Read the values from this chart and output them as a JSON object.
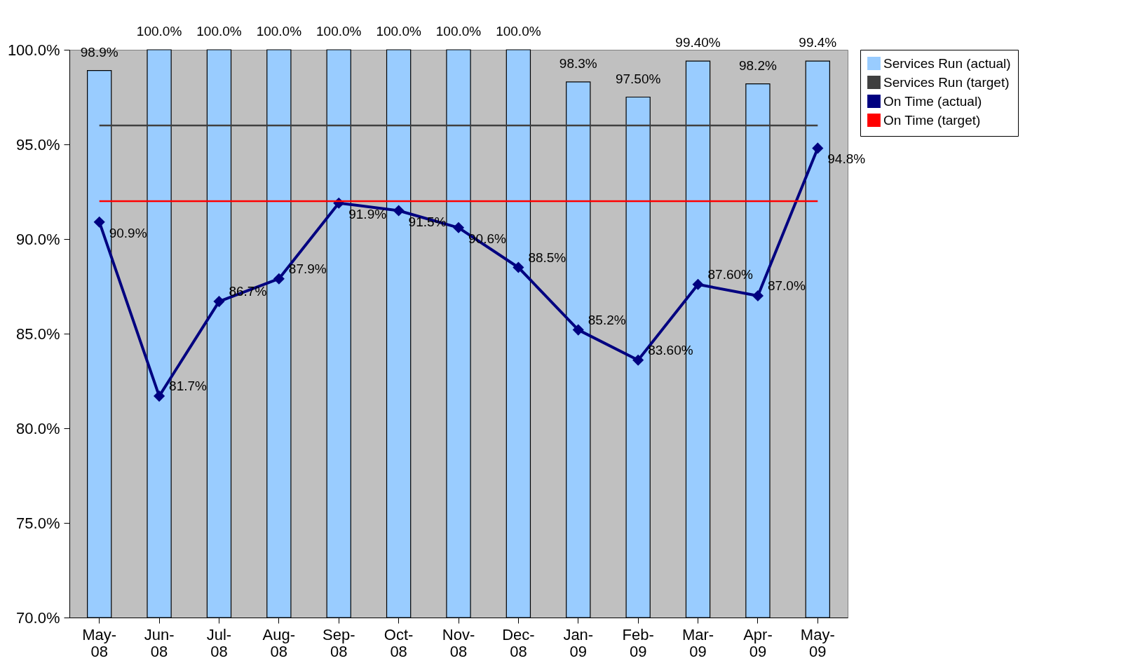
{
  "chart_data": {
    "type": "bar",
    "categories": [
      "May-08",
      "Jun-08",
      "Jul-08",
      "Aug-08",
      "Sep-08",
      "Oct-08",
      "Nov-08",
      "Dec-08",
      "Jan-09",
      "Feb-09",
      "Mar-09",
      "Apr-09",
      "May-09"
    ],
    "series": [
      {
        "name": "Services Run (actual)",
        "type": "bar",
        "color": "#99ccff",
        "values": [
          98.9,
          100,
          100,
          100,
          100,
          100,
          100,
          100,
          98.3,
          97.5,
          99.4,
          98.2,
          99.4
        ],
        "value_labels": [
          "98.9%",
          "100.0%",
          "100.0%",
          "100.0%",
          "100.0%",
          "100.0%",
          "100.0%",
          "100.0%",
          "98.3%",
          "97.50%",
          "99.40%",
          "98.2%",
          "99.4%"
        ]
      },
      {
        "name": "Services Run (target)",
        "type": "line",
        "color": "#404040",
        "marker": "none",
        "values": [
          96,
          96,
          96,
          96,
          96,
          96,
          96,
          96,
          96,
          96,
          96,
          96,
          96
        ]
      },
      {
        "name": "On Time (actual)",
        "type": "line",
        "color": "#000080",
        "marker": "diamond",
        "values": [
          90.9,
          81.7,
          86.7,
          87.9,
          91.9,
          91.5,
          90.6,
          88.5,
          85.2,
          83.6,
          87.6,
          87.0,
          94.8
        ],
        "value_labels": [
          "90.9%",
          "81.7%",
          "86.7%",
          "87.9%",
          "91.9%",
          "91.5%",
          "90.6%",
          "88.5%",
          "85.2%",
          "83.60%",
          "87.60%",
          "87.0%",
          "94.8%"
        ]
      },
      {
        "name": "On Time (target)",
        "type": "line",
        "color": "#ff0000",
        "marker": "none",
        "values": [
          92,
          92,
          92,
          92,
          92,
          92,
          92,
          92,
          92,
          92,
          92,
          92,
          92
        ]
      }
    ],
    "ylim": [
      70,
      100
    ],
    "yticks": [
      {
        "value": 70,
        "label": "70.0%"
      },
      {
        "value": 75,
        "label": "75.0%"
      },
      {
        "value": 80,
        "label": "80.0%"
      },
      {
        "value": 85,
        "label": "85.0%"
      },
      {
        "value": 90,
        "label": "90.0%"
      },
      {
        "value": 95,
        "label": "95.0%"
      },
      {
        "value": 100,
        "label": "100.0%"
      }
    ],
    "grid": false,
    "legend": "right"
  }
}
